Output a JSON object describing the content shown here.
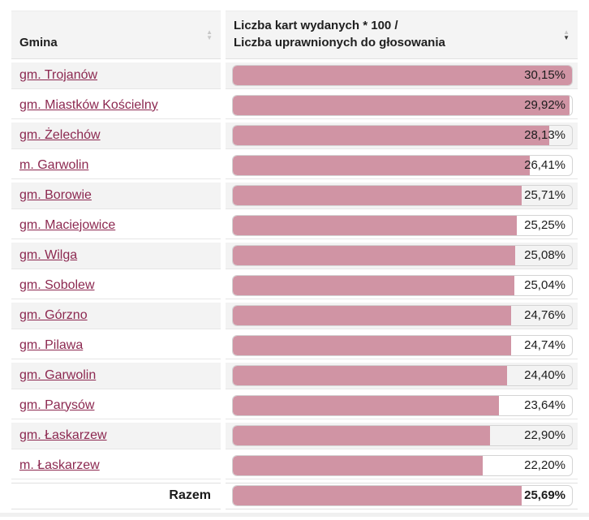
{
  "table": {
    "header": {
      "columns": [
        {
          "label": "Gmina",
          "sort_state": "none"
        },
        {
          "label": "Liczba kart wydanych * 100 /\nLiczba uprawnionych do głosowania",
          "sort_state": "desc"
        }
      ]
    },
    "bar_scale_max_pct": 30.15,
    "colors": {
      "bar_fill": "#d094a4",
      "link": "#8c2850",
      "row_alt_bg": "#f3f3f3",
      "header_bg": "#f4f4f4"
    },
    "rows": [
      {
        "name": "gm. Trojanów",
        "value_label": "30,15%",
        "value_pct": 30.15
      },
      {
        "name": "gm. Miastków Kościelny",
        "value_label": "29,92%",
        "value_pct": 29.92
      },
      {
        "name": "gm. Żelechów",
        "value_label": "28,13%",
        "value_pct": 28.13
      },
      {
        "name": "m. Garwolin",
        "value_label": "26,41%",
        "value_pct": 26.41
      },
      {
        "name": "gm. Borowie",
        "value_label": "25,71%",
        "value_pct": 25.71
      },
      {
        "name": "gm. Maciejowice",
        "value_label": "25,25%",
        "value_pct": 25.25
      },
      {
        "name": "gm. Wilga",
        "value_label": "25,08%",
        "value_pct": 25.08
      },
      {
        "name": "gm. Sobolew",
        "value_label": "25,04%",
        "value_pct": 25.04
      },
      {
        "name": "gm. Górzno",
        "value_label": "24,76%",
        "value_pct": 24.76
      },
      {
        "name": "gm. Pilawa",
        "value_label": "24,74%",
        "value_pct": 24.74
      },
      {
        "name": "gm. Garwolin",
        "value_label": "24,40%",
        "value_pct": 24.4
      },
      {
        "name": "gm. Parysów",
        "value_label": "23,64%",
        "value_pct": 23.64
      },
      {
        "name": "gm. Łaskarzew",
        "value_label": "22,90%",
        "value_pct": 22.9
      },
      {
        "name": "m. Łaskarzew",
        "value_label": "22,20%",
        "value_pct": 22.2
      },
      {
        "name": "Razem",
        "value_label": "25,69%",
        "value_pct": 25.69,
        "total": true
      }
    ]
  }
}
